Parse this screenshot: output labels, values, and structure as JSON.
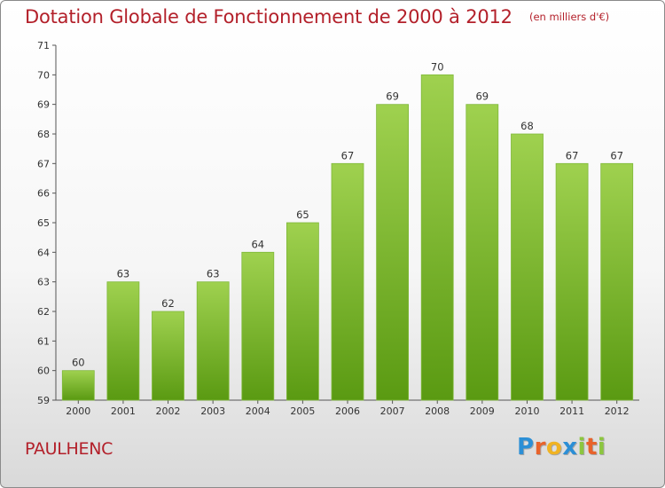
{
  "title": "Dotation Globale de Fonctionnement de 2000 à 2012",
  "unit_note": "(en milliers d'€)",
  "place": "PAULHENC",
  "logo": {
    "letters": [
      "P",
      "r",
      "o",
      "x",
      "i",
      "t",
      "i"
    ],
    "colors": [
      "#2c8fd6",
      "#e8632b",
      "#f0b323",
      "#2c8fd6",
      "#8cc63f",
      "#e8632b",
      "#8cc63f"
    ]
  },
  "colors": {
    "bar_top": "#9fd14f",
    "bar_bottom": "#5a9a12",
    "axis": "#555555",
    "grid": "#cfcfcf"
  },
  "chart_data": {
    "type": "bar",
    "categories": [
      "2000",
      "2001",
      "2002",
      "2003",
      "2004",
      "2005",
      "2006",
      "2007",
      "2008",
      "2009",
      "2010",
      "2011",
      "2012"
    ],
    "values": [
      60,
      63,
      62,
      63,
      64,
      65,
      67,
      69,
      70,
      69,
      68,
      67,
      67
    ],
    "data_labels": [
      "60",
      "63",
      "62",
      "63",
      "64",
      "65",
      "67",
      "69",
      "70",
      "69",
      "68",
      "67",
      "67"
    ],
    "yticks": [
      "59",
      "60",
      "61",
      "62",
      "63",
      "64",
      "65",
      "66",
      "67",
      "68",
      "69",
      "70",
      "71"
    ],
    "ylim": [
      59,
      71
    ],
    "title": "Dotation Globale de Fonctionnement de 2000 à 2012",
    "xlabel": "",
    "ylabel": "",
    "grid": false,
    "legend": "none"
  }
}
